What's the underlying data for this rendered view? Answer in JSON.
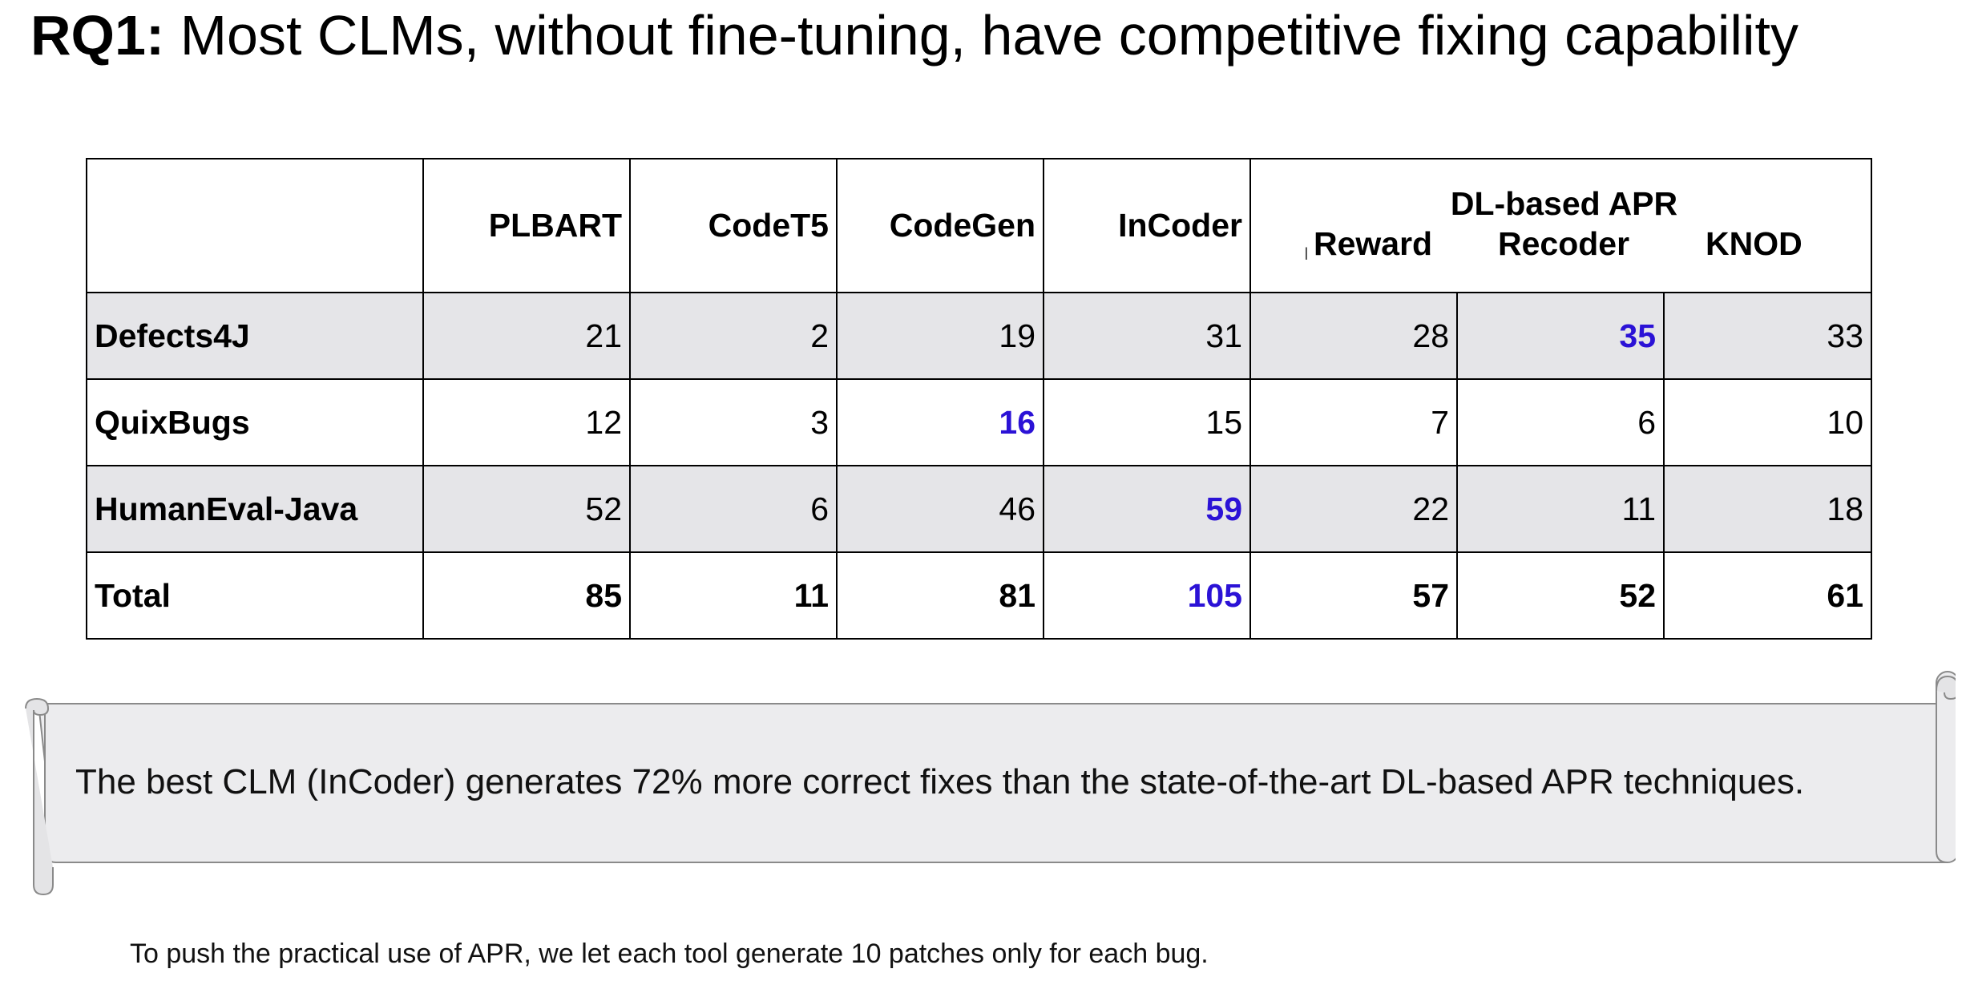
{
  "slide": {
    "title_prefix": "RQ1:",
    "title_rest": "Most CLMs, without fine-tuning, have competitive fixing capability"
  },
  "table": {
    "columns": [
      "PLBART",
      "CodeT5",
      "CodeGen",
      "InCoder"
    ],
    "dl_group_label": "DL-based APR",
    "dl_columns": [
      "Reward",
      "Recoder",
      "KNOD"
    ],
    "rows": [
      {
        "label": "Defects4J",
        "values": [
          "21",
          "2",
          "19",
          "31",
          "28",
          "35",
          "33"
        ],
        "best_index": 5
      },
      {
        "label": "QuixBugs",
        "values": [
          "12",
          "3",
          "16",
          "15",
          "7",
          "6",
          "10"
        ],
        "best_index": 2
      },
      {
        "label": "HumanEval-Java",
        "values": [
          "52",
          "6",
          "46",
          "59",
          "22",
          "11",
          "18"
        ],
        "best_index": 3
      },
      {
        "label": "Total",
        "values": [
          "85",
          "11",
          "81",
          "105",
          "57",
          "52",
          "61"
        ],
        "best_index": 3
      }
    ],
    "highlight_color": "#2b12d6",
    "shade_color": "#e5e5e8"
  },
  "scroll_banner": {
    "text": "The best CLM (InCoder) generates 72% more correct fixes than the state-of-the-art DL-based APR techniques."
  },
  "footnote": "To push the practical use of APR, we let each tool generate 10 patches only for each bug."
}
